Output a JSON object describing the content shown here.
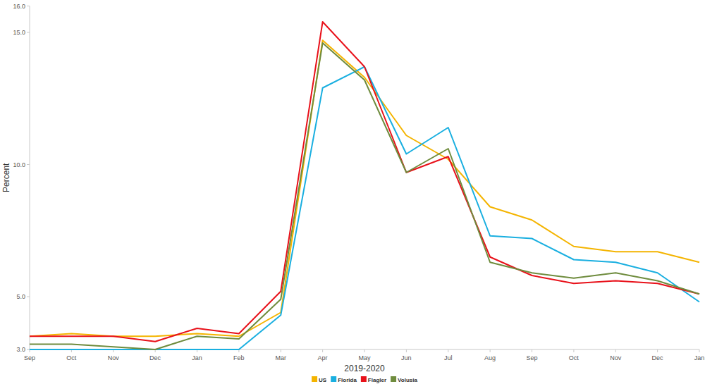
{
  "chart_data": {
    "type": "line",
    "x_label": "2019-2020",
    "y_label": "Percent",
    "categories": [
      "Sep",
      "Oct",
      "Nov",
      "Dec",
      "Jan",
      "Feb",
      "Mar",
      "Apr",
      "May",
      "Jun",
      "Jul",
      "Aug",
      "Sep",
      "Oct",
      "Nov",
      "Dec",
      "Jan"
    ],
    "series": [
      {
        "name": "US",
        "color": "#f4b400",
        "values": [
          3.5,
          3.6,
          3.5,
          3.5,
          3.6,
          3.5,
          4.4,
          14.7,
          13.3,
          11.1,
          10.2,
          8.4,
          7.9,
          6.9,
          6.7,
          6.7,
          6.3
        ]
      },
      {
        "name": "Florida",
        "color": "#1aafe0",
        "values": [
          3.0,
          3.0,
          3.0,
          3.0,
          3.0,
          3.0,
          4.3,
          12.9,
          13.7,
          10.4,
          11.4,
          7.3,
          7.2,
          6.4,
          6.3,
          5.9,
          4.8
        ]
      },
      {
        "name": "Flagler",
        "color": "#e8111a",
        "values": [
          3.5,
          3.5,
          3.5,
          3.3,
          3.8,
          3.6,
          5.2,
          15.4,
          13.7,
          9.7,
          10.3,
          6.5,
          5.8,
          5.5,
          5.6,
          5.5,
          5.1
        ]
      },
      {
        "name": "Volusia",
        "color": "#6f8c3e",
        "values": [
          3.2,
          3.2,
          3.1,
          3.0,
          3.5,
          3.4,
          4.9,
          14.6,
          13.2,
          9.7,
          10.6,
          6.3,
          5.9,
          5.7,
          5.9,
          5.6,
          5.1
        ]
      }
    ],
    "ylim": [
      3,
      16
    ],
    "yticks": [
      {
        "value": 3,
        "label": "3.0"
      },
      {
        "value": 5,
        "label": "5.0"
      },
      {
        "value": 10,
        "label": "10.0"
      },
      {
        "value": 15,
        "label": "15.0"
      },
      {
        "value": 16,
        "label": "16.0"
      }
    ],
    "grid": false,
    "legend": "bottom"
  }
}
